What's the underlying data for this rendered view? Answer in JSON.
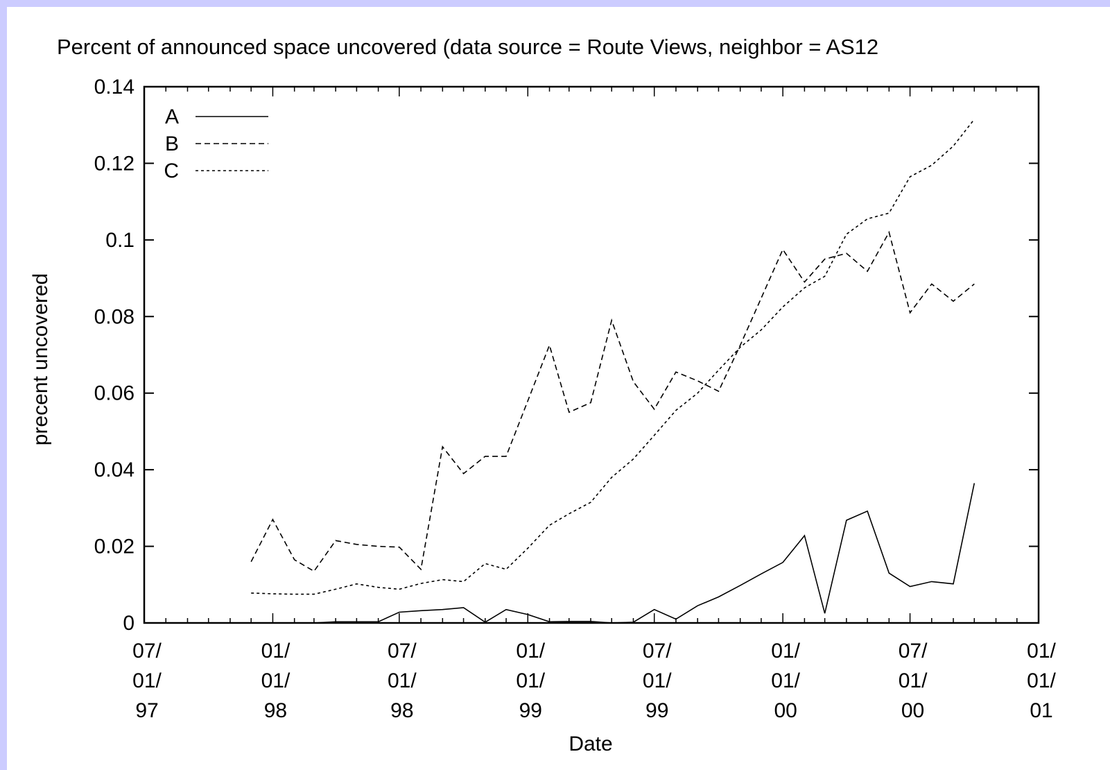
{
  "chart_data": {
    "type": "line",
    "title": "Percent of announced space uncovered (data source = Route Views, neighbor = AS12",
    "xlabel": "Date",
    "ylabel": "precent uncovered",
    "ylim": [
      0,
      0.14
    ],
    "xlim": [
      "1997-07-01",
      "2001-01-01"
    ],
    "yticks": [
      "0",
      "0.02",
      "0.04",
      "0.06",
      "0.08",
      "0.1",
      "0.12",
      "0.14"
    ],
    "xticks": [
      {
        "date": "1997-07-01",
        "lines": [
          "07/",
          "01/",
          "97"
        ]
      },
      {
        "date": "1998-01-01",
        "lines": [
          "01/",
          "01/",
          "98"
        ]
      },
      {
        "date": "1998-07-01",
        "lines": [
          "07/",
          "01/",
          "98"
        ]
      },
      {
        "date": "1999-01-01",
        "lines": [
          "01/",
          "01/",
          "99"
        ]
      },
      {
        "date": "1999-07-01",
        "lines": [
          "07/",
          "01/",
          "99"
        ]
      },
      {
        "date": "2000-01-01",
        "lines": [
          "01/",
          "01/",
          "00"
        ]
      },
      {
        "date": "2000-07-01",
        "lines": [
          "07/",
          "01/",
          "00"
        ]
      },
      {
        "date": "2001-01-01",
        "lines": [
          "01/",
          "01/",
          "01"
        ]
      }
    ],
    "grid": false,
    "legend_position": "top-left",
    "series": [
      {
        "name": "A",
        "dash": "solid",
        "x": [
          "1997-12-01",
          "1998-01-01",
          "1998-02-01",
          "1998-03-01",
          "1998-04-01",
          "1998-05-01",
          "1998-06-01",
          "1998-07-01",
          "1998-08-01",
          "1998-09-01",
          "1998-10-01",
          "1998-11-01",
          "1998-12-01",
          "1999-01-01",
          "1999-02-01",
          "1999-03-01",
          "1999-04-01",
          "1999-05-01",
          "1999-06-01",
          "1999-07-01",
          "1999-08-01",
          "1999-09-01",
          "1999-10-01",
          "1999-11-01",
          "1999-12-01",
          "2000-01-01",
          "2000-02-01",
          "2000-03-01",
          "2000-04-01",
          "2000-05-01",
          "2000-06-01",
          "2000-07-01",
          "2000-08-01",
          "2000-09-01",
          "2000-10-01"
        ],
        "y": [
          0.0,
          0.0,
          0.0,
          0.0,
          0.0003,
          0.0003,
          0.0003,
          0.0028,
          0.0032,
          0.0035,
          0.004,
          0.0002,
          0.0035,
          0.0022,
          0.0003,
          0.0004,
          0.0004,
          0.0,
          0.0002,
          0.0035,
          0.001,
          0.0045,
          0.0068,
          0.0098,
          0.0128,
          0.0158,
          0.0228,
          0.0025,
          0.0268,
          0.0292,
          0.013,
          0.0095,
          0.0108,
          0.0102,
          0.0365
        ]
      },
      {
        "name": "B",
        "dash": "dashed",
        "x": [
          "1997-12-01",
          "1998-01-01",
          "1998-02-01",
          "1998-03-01",
          "1998-04-01",
          "1998-05-01",
          "1998-06-01",
          "1998-07-01",
          "1998-08-01",
          "1998-09-01",
          "1998-10-01",
          "1998-11-01",
          "1998-12-01",
          "1999-01-01",
          "1999-02-01",
          "1999-03-01",
          "1999-04-01",
          "1999-05-01",
          "1999-06-01",
          "1999-07-01",
          "1999-08-01",
          "1999-09-01",
          "1999-10-01",
          "1999-11-01",
          "1999-12-01",
          "2000-01-01",
          "2000-02-01",
          "2000-03-01",
          "2000-04-01",
          "2000-05-01",
          "2000-06-01",
          "2000-07-01",
          "2000-08-01",
          "2000-09-01",
          "2000-10-01"
        ],
        "y": [
          0.016,
          0.027,
          0.0165,
          0.0135,
          0.0215,
          0.0205,
          0.02,
          0.0198,
          0.014,
          0.046,
          0.039,
          0.0435,
          0.0435,
          0.058,
          0.0725,
          0.055,
          0.0575,
          0.079,
          0.063,
          0.0558,
          0.0655,
          0.0632,
          0.0605,
          0.0725,
          0.0848,
          0.0975,
          0.089,
          0.095,
          0.0965,
          0.0918,
          0.102,
          0.081,
          0.0885,
          0.084,
          0.0885
        ]
      },
      {
        "name": "C",
        "dash": "dotted",
        "x": [
          "1997-12-01",
          "1998-01-01",
          "1998-02-01",
          "1998-03-01",
          "1998-04-01",
          "1998-05-01",
          "1998-06-01",
          "1998-07-01",
          "1998-08-01",
          "1998-09-01",
          "1998-10-01",
          "1998-11-01",
          "1998-12-01",
          "1999-01-01",
          "1999-02-01",
          "1999-03-01",
          "1999-04-01",
          "1999-05-01",
          "1999-06-01",
          "1999-07-01",
          "1999-08-01",
          "1999-09-01",
          "1999-10-01",
          "1999-11-01",
          "1999-12-01",
          "2000-01-01",
          "2000-02-01",
          "2000-03-01",
          "2000-04-01",
          "2000-05-01",
          "2000-06-01",
          "2000-07-01",
          "2000-08-01",
          "2000-09-01",
          "2000-10-01"
        ],
        "y": [
          0.0078,
          0.0076,
          0.0075,
          0.0075,
          0.0088,
          0.0102,
          0.0093,
          0.0088,
          0.0103,
          0.0113,
          0.0108,
          0.0155,
          0.014,
          0.0195,
          0.0255,
          0.0285,
          0.0315,
          0.038,
          0.0428,
          0.049,
          0.0555,
          0.06,
          0.066,
          0.072,
          0.0765,
          0.0825,
          0.0875,
          0.0905,
          0.1015,
          0.1055,
          0.107,
          0.1165,
          0.1195,
          0.1245,
          0.1315
        ]
      }
    ]
  }
}
